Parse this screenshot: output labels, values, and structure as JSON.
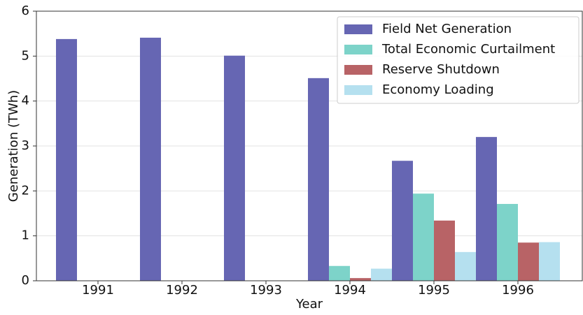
{
  "chart_data": {
    "type": "bar",
    "x_label": "Year",
    "y_label": "Generation (TWh)",
    "categories": [
      "1991",
      "1992",
      "1993",
      "1994",
      "1995",
      "1996"
    ],
    "series": [
      {
        "name": "Field Net Generation",
        "color": "#6666b3",
        "values": [
          5.38,
          5.41,
          5.01,
          4.51,
          2.67,
          3.2
        ]
      },
      {
        "name": "Total Economic Curtailment",
        "color": "#7dd3c9",
        "values": [
          0,
          0,
          0,
          0.33,
          1.94,
          1.71
        ]
      },
      {
        "name": "Reserve Shutdown",
        "color": "#b86366",
        "values": [
          0,
          0,
          0,
          0.06,
          1.34,
          0.85
        ]
      },
      {
        "name": "Economy Loading",
        "color": "#b5e0ef",
        "values": [
          0,
          0,
          0,
          0.27,
          0.64,
          0.86
        ]
      }
    ],
    "ylim": [
      0,
      6
    ],
    "yticks": [
      0,
      1,
      2,
      3,
      4,
      5,
      6
    ],
    "grid": true,
    "legend": "upper right"
  }
}
